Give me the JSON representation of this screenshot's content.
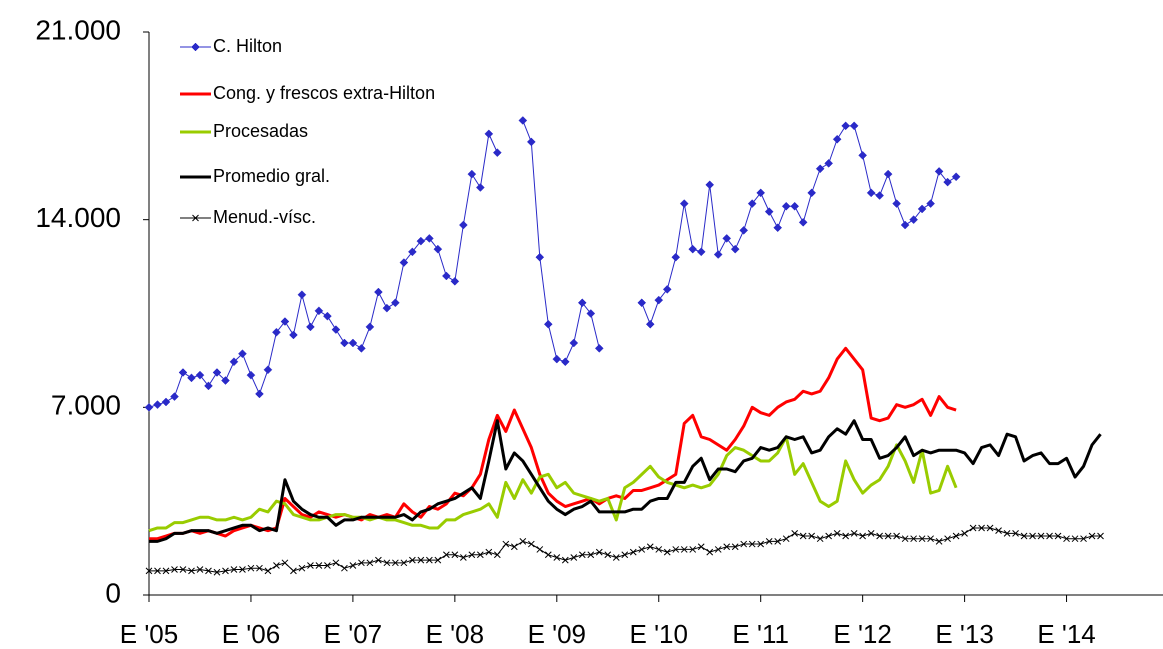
{
  "chart_data": {
    "type": "line",
    "categories": [
      "E '05",
      null,
      null,
      null,
      null,
      null,
      null,
      null,
      null,
      null,
      null,
      null,
      "E '06",
      null,
      null,
      null,
      null,
      null,
      null,
      null,
      null,
      null,
      null,
      null,
      "E '07",
      null,
      null,
      null,
      null,
      null,
      null,
      null,
      null,
      null,
      null,
      null,
      "E '08",
      null,
      null,
      null,
      null,
      null,
      null,
      null,
      null,
      null,
      null,
      null,
      "E '09",
      null,
      null,
      null,
      null,
      null,
      null,
      null,
      null,
      null,
      null,
      null,
      "E '10",
      null,
      null,
      null,
      null,
      null,
      null,
      null,
      null,
      null,
      null,
      null,
      "E '11",
      null,
      null,
      null,
      null,
      null,
      null,
      null,
      null,
      null,
      null,
      null,
      "E '12",
      null,
      null,
      null,
      null,
      null,
      null,
      null,
      null,
      null,
      null,
      null,
      "E '13",
      null,
      null,
      null,
      null,
      null,
      null,
      null,
      null,
      null,
      null,
      null,
      "E '14",
      null,
      null,
      null,
      null,
      null,
      null,
      null,
      null,
      null,
      null,
      null
    ],
    "ylim": [
      0,
      21000
    ],
    "yticks": [
      0,
      {
        "value": 7000,
        "label": "7.000"
      },
      {
        "value": 14000,
        "label": "14.000"
      },
      {
        "value": 21000,
        "label": "21.000"
      }
    ],
    "legend": "top-left",
    "series": [
      {
        "name": "C. Hilton",
        "color": "#2a2ac8",
        "line_width": 1,
        "marker": "diamond",
        "values": [
          7000,
          7100,
          7200,
          7400,
          8300,
          8100,
          8200,
          7800,
          8300,
          8000,
          8700,
          9000,
          8200,
          7500,
          8400,
          9800,
          10200,
          9700,
          11200,
          10000,
          10600,
          10400,
          9900,
          9400,
          9400,
          9200,
          10000,
          11300,
          10700,
          10900,
          12400,
          12800,
          13200,
          13300,
          12900,
          11900,
          11700,
          13800,
          15700,
          15200,
          17200,
          16500,
          null,
          null,
          17700,
          16900,
          12600,
          10100,
          8800,
          8700,
          9400,
          10900,
          10500,
          9200,
          null,
          null,
          null,
          null,
          10900,
          10100,
          11000,
          11400,
          12600,
          14600,
          12900,
          12800,
          15300,
          12700,
          13300,
          12900,
          13600,
          14600,
          15000,
          14300,
          13700,
          14500,
          14500,
          13900,
          15000,
          15900,
          16100,
          17000,
          17500,
          17500,
          16400,
          15000,
          14900,
          15700,
          14600,
          13800,
          14000,
          14400,
          14600,
          15800,
          15400,
          15600,
          null,
          null,
          null,
          null,
          null,
          null,
          null,
          null,
          null,
          null,
          null,
          null,
          null,
          null,
          null,
          null,
          null,
          null,
          null,
          null,
          null,
          null,
          null,
          null
        ]
      },
      {
        "name": "Cong. y frescos extra-Hilton",
        "color": "#ff0000",
        "line_width": 3,
        "marker": "none",
        "values": [
          2100,
          2100,
          2200,
          2300,
          2300,
          2400,
          2300,
          2400,
          2300,
          2200,
          2400,
          2500,
          2600,
          2500,
          2400,
          2500,
          3600,
          3300,
          3000,
          2900,
          3100,
          3000,
          2900,
          3000,
          2900,
          2800,
          3000,
          2900,
          3000,
          2900,
          3400,
          3100,
          2900,
          3300,
          3200,
          3400,
          3800,
          3700,
          4000,
          4500,
          5800,
          6700,
          6100,
          6900,
          6200,
          5500,
          4500,
          3800,
          3500,
          3300,
          3400,
          3500,
          3600,
          3400,
          3600,
          3700,
          3600,
          3900,
          3900,
          4000,
          4100,
          4300,
          4500,
          6400,
          6700,
          5900,
          5800,
          5600,
          5400,
          5800,
          6300,
          7000,
          6800,
          6700,
          7000,
          7200,
          7300,
          7600,
          7500,
          7600,
          8100,
          8800,
          9200,
          8800,
          8400,
          6600,
          6500,
          6600,
          7100,
          7000,
          7100,
          7300,
          6700,
          7400,
          7000,
          6900,
          null,
          null,
          null,
          null,
          null,
          null,
          null,
          null,
          null,
          null,
          null,
          null,
          null,
          null,
          null,
          null,
          null,
          null,
          null,
          null,
          null,
          null,
          null,
          null
        ]
      },
      {
        "name": "Procesadas",
        "color": "#99cc00",
        "line_width": 3,
        "marker": "none",
        "values": [
          2400,
          2500,
          2500,
          2700,
          2700,
          2800,
          2900,
          2900,
          2800,
          2800,
          2900,
          2800,
          2900,
          3200,
          3100,
          3500,
          3400,
          3000,
          2900,
          2800,
          2800,
          2900,
          3000,
          3000,
          2900,
          2900,
          2800,
          2900,
          2800,
          2800,
          2700,
          2600,
          2600,
          2500,
          2500,
          2800,
          2800,
          3000,
          3100,
          3200,
          3400,
          2900,
          4200,
          3600,
          4300,
          3800,
          4400,
          4500,
          4000,
          4200,
          3800,
          3700,
          3600,
          3500,
          3600,
          2800,
          4000,
          4200,
          4500,
          4800,
          4400,
          4200,
          4100,
          4000,
          4100,
          4000,
          4100,
          4500,
          5200,
          5500,
          5400,
          5200,
          5000,
          5000,
          5300,
          5900,
          4500,
          4900,
          4200,
          3500,
          3300,
          3500,
          5000,
          4300,
          3800,
          4100,
          4300,
          4800,
          5600,
          5000,
          4200,
          5400,
          3800,
          3900,
          4800,
          4000,
          null,
          null,
          null,
          null,
          null,
          null,
          null,
          null,
          null,
          null,
          null,
          null,
          null,
          null,
          null,
          null,
          null,
          null,
          null,
          null,
          null,
          null,
          null,
          null
        ]
      },
      {
        "name": "Promedio gral.",
        "color": "#000000",
        "line_width": 3,
        "marker": "none",
        "values": [
          2000,
          2000,
          2100,
          2300,
          2300,
          2400,
          2400,
          2400,
          2300,
          2400,
          2500,
          2600,
          2600,
          2400,
          2500,
          2400,
          4300,
          3500,
          3200,
          3000,
          2900,
          2900,
          2600,
          2800,
          2800,
          2900,
          2900,
          2900,
          2900,
          2900,
          3000,
          2800,
          3100,
          3200,
          3400,
          3500,
          3600,
          3800,
          4000,
          3600,
          5000,
          6500,
          4700,
          5300,
          5000,
          4500,
          4000,
          3500,
          3200,
          3000,
          3200,
          3300,
          3500,
          3100,
          3100,
          3100,
          3100,
          3200,
          3200,
          3500,
          3600,
          3600,
          4200,
          4200,
          4800,
          5100,
          4300,
          4700,
          4700,
          4600,
          5000,
          5100,
          5500,
          5400,
          5500,
          5900,
          5800,
          5900,
          5300,
          5400,
          5900,
          6200,
          6000,
          6500,
          5800,
          5800,
          5100,
          5200,
          5500,
          5900,
          5200,
          5400,
          5300,
          5400,
          5400,
          5400,
          5300,
          4900,
          5500,
          5600,
          5200,
          6000,
          5900,
          5000,
          5200,
          5300,
          4900,
          4900,
          5100,
          4400,
          4800,
          5600,
          6000,
          null,
          null,
          null,
          null,
          null,
          null,
          null
        ]
      },
      {
        "name": "Menud.-vísc.",
        "color": "#000000",
        "line_width": 1,
        "marker": "x",
        "values": [
          900,
          900,
          900,
          950,
          950,
          900,
          950,
          900,
          850,
          900,
          950,
          950,
          1000,
          1000,
          900,
          1100,
          1200,
          900,
          1000,
          1100,
          1100,
          1100,
          1200,
          1000,
          1100,
          1200,
          1200,
          1300,
          1200,
          1200,
          1200,
          1300,
          1300,
          1300,
          1300,
          1500,
          1500,
          1400,
          1500,
          1500,
          1600,
          1500,
          1900,
          1800,
          2000,
          1900,
          1700,
          1500,
          1400,
          1300,
          1400,
          1500,
          1500,
          1600,
          1500,
          1400,
          1500,
          1600,
          1700,
          1800,
          1700,
          1600,
          1700,
          1700,
          1700,
          1800,
          1600,
          1700,
          1800,
          1800,
          1900,
          1900,
          1900,
          2000,
          2000,
          2100,
          2300,
          2200,
          2200,
          2100,
          2200,
          2300,
          2200,
          2300,
          2200,
          2300,
          2200,
          2200,
          2200,
          2100,
          2100,
          2100,
          2100,
          2000,
          2100,
          2200,
          2300,
          2500,
          2500,
          2500,
          2400,
          2300,
          2300,
          2200,
          2200,
          2200,
          2200,
          2200,
          2100,
          2100,
          2100,
          2200,
          2200,
          null,
          null,
          null,
          null,
          null,
          null,
          null
        ]
      }
    ]
  }
}
